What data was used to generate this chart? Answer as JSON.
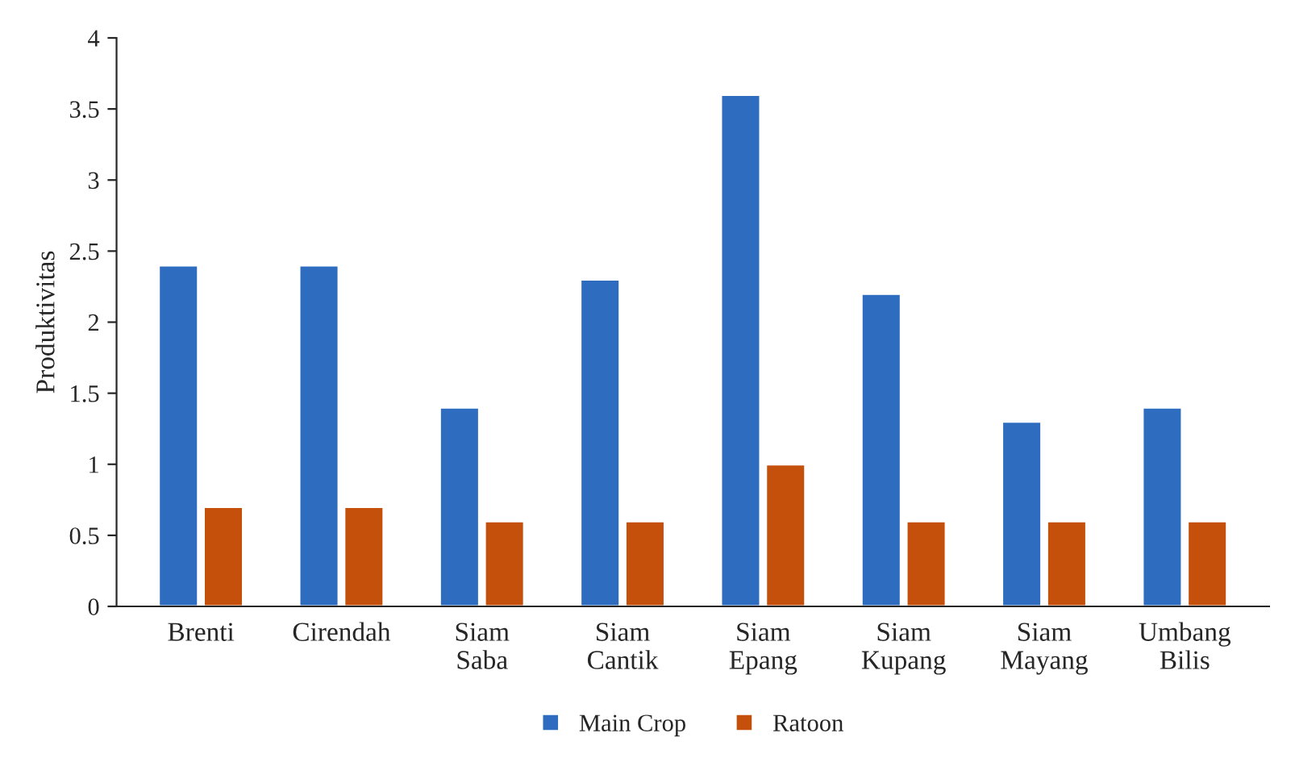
{
  "chart_data": {
    "type": "bar",
    "ylabel": "Produktivitas",
    "categories": [
      "Brenti",
      "Cirendah",
      "Siam\nSaba",
      "Siam\nCantik",
      "Siam\nEpang",
      "Siam\nKupang",
      "Siam\nMayang",
      "Umbang\nBilis"
    ],
    "series": [
      {
        "name": "Main Crop",
        "color": "#2e6cc0",
        "values": [
          2.4,
          2.4,
          1.4,
          2.3,
          3.6,
          2.2,
          1.3,
          1.4
        ]
      },
      {
        "name": "Ratoon",
        "color": "#c4500c",
        "values": [
          0.7,
          0.7,
          0.6,
          0.6,
          1.0,
          0.6,
          0.6,
          0.6
        ]
      }
    ],
    "ylim": [
      0,
      4
    ],
    "yticks": [
      0,
      0.5,
      1,
      1.5,
      2,
      2.5,
      3,
      3.5,
      4
    ],
    "grid": false,
    "legend": "bottom"
  }
}
